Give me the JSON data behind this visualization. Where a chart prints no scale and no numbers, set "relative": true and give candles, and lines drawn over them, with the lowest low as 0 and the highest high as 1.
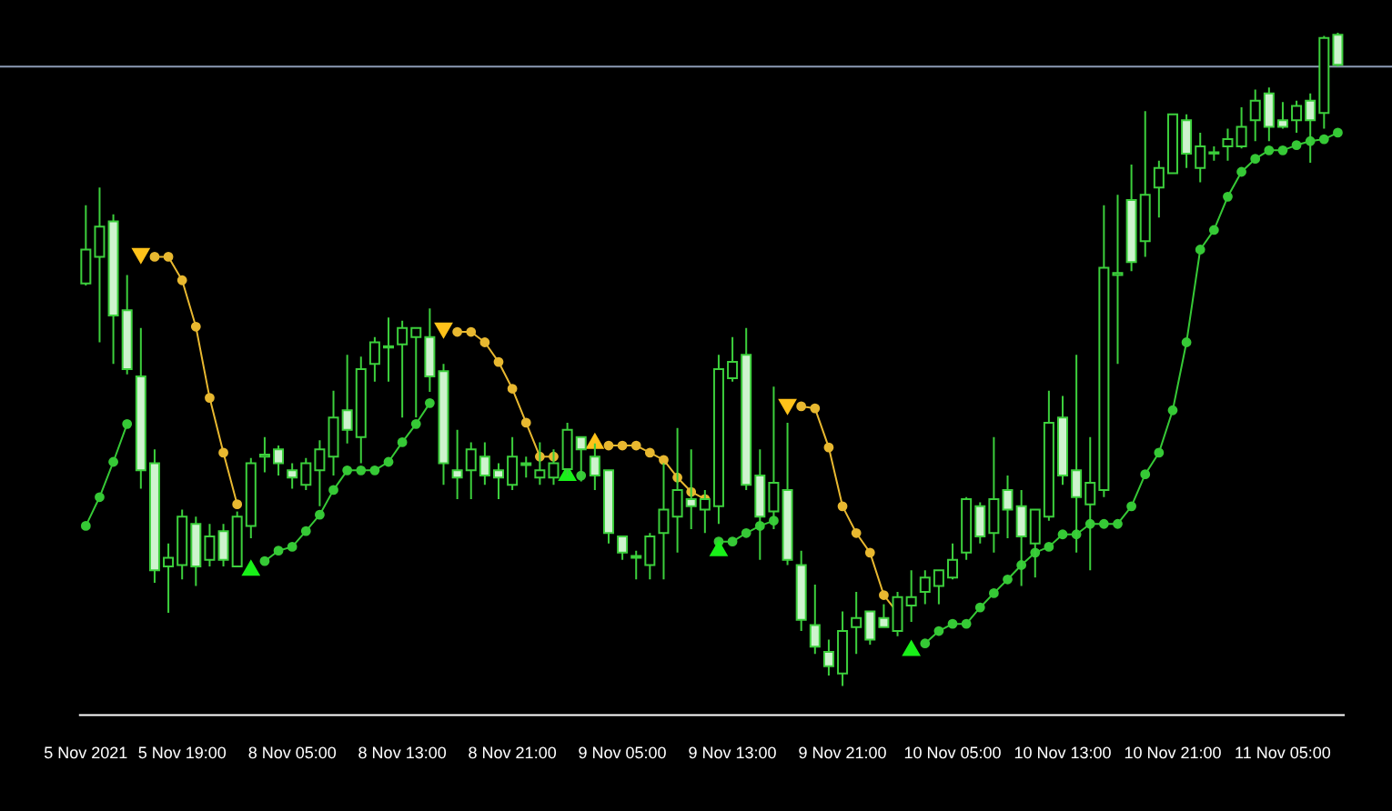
{
  "chart_data": {
    "type": "candlestick",
    "relative": true,
    "color": "#3ccf3c",
    "legend": false,
    "categories": [
      "5 Nov 2021",
      null,
      null,
      null,
      null,
      null,
      null,
      "5 Nov 19:00",
      null,
      null,
      null,
      null,
      null,
      null,
      null,
      "8 Nov 05:00",
      null,
      null,
      null,
      null,
      null,
      null,
      null,
      "8 Nov 13:00",
      null,
      null,
      null,
      null,
      null,
      null,
      null,
      "8 Nov 21:00",
      null,
      null,
      null,
      null,
      null,
      null,
      null,
      "9 Nov 05:00",
      null,
      null,
      null,
      null,
      null,
      null,
      null,
      "9 Nov 13:00",
      null,
      null,
      null,
      null,
      null,
      null,
      null,
      "9 Nov 21:00",
      null,
      null,
      null,
      null,
      null,
      null,
      null,
      "10 Nov 05:00",
      null,
      null,
      null,
      null,
      null,
      null,
      null,
      "10 Nov 13:00",
      null,
      null,
      null,
      null,
      null,
      null,
      null,
      "10 Nov 21:00",
      null,
      null,
      null,
      null,
      null,
      null,
      null,
      "11 Nov 05:00",
      null,
      null,
      null,
      null
    ],
    "ohlc": [
      [
        0.616,
        0.736,
        0.613,
        0.668
      ],
      [
        0.657,
        0.763,
        0.526,
        0.703
      ],
      [
        0.711,
        0.722,
        0.493,
        0.567
      ],
      [
        0.575,
        0.629,
        0.477,
        0.485
      ],
      [
        0.474,
        0.548,
        0.302,
        0.33
      ],
      [
        0.341,
        0.362,
        0.158,
        0.177
      ],
      [
        0.183,
        0.218,
        0.112,
        0.196
      ],
      [
        0.185,
        0.27,
        0.163,
        0.259
      ],
      [
        0.248,
        0.259,
        0.153,
        0.183
      ],
      [
        0.193,
        0.248,
        0.183,
        0.229
      ],
      [
        0.237,
        0.248,
        0.183,
        0.193
      ],
      [
        0.183,
        0.267,
        0.183,
        0.259
      ],
      [
        0.245,
        0.349,
        0.226,
        0.341
      ],
      [
        0.351,
        0.381,
        0.327,
        0.354
      ],
      [
        0.362,
        0.368,
        0.322,
        0.341
      ],
      [
        0.33,
        0.341,
        0.302,
        0.319
      ],
      [
        0.308,
        0.349,
        0.3,
        0.341
      ],
      [
        0.33,
        0.376,
        0.275,
        0.362
      ],
      [
        0.351,
        0.452,
        0.322,
        0.411
      ],
      [
        0.422,
        0.507,
        0.371,
        0.392
      ],
      [
        0.381,
        0.504,
        0.341,
        0.485
      ],
      [
        0.493,
        0.534,
        0.466,
        0.526
      ],
      [
        0.518,
        0.564,
        0.466,
        0.52
      ],
      [
        0.523,
        0.559,
        0.411,
        0.548
      ],
      [
        0.534,
        0.548,
        0.411,
        0.548
      ],
      [
        0.534,
        0.578,
        0.45,
        0.474
      ],
      [
        0.482,
        0.493,
        0.308,
        0.341
      ],
      [
        0.33,
        0.392,
        0.286,
        0.319
      ],
      [
        0.33,
        0.373,
        0.286,
        0.362
      ],
      [
        0.351,
        0.373,
        0.308,
        0.322
      ],
      [
        0.33,
        0.341,
        0.286,
        0.319
      ],
      [
        0.308,
        0.381,
        0.3,
        0.351
      ],
      [
        0.338,
        0.351,
        0.319,
        0.341
      ],
      [
        0.319,
        0.373,
        0.308,
        0.33
      ],
      [
        0.319,
        0.362,
        0.308,
        0.341
      ],
      [
        0.332,
        0.403,
        0.322,
        0.392
      ],
      [
        0.381,
        0.381,
        0.313,
        0.362
      ],
      [
        0.351,
        0.371,
        0.3,
        0.322
      ],
      [
        0.33,
        0.33,
        0.218,
        0.234
      ],
      [
        0.229,
        0.229,
        0.193,
        0.204
      ],
      [
        0.196,
        0.207,
        0.163,
        0.199
      ],
      [
        0.185,
        0.234,
        0.163,
        0.229
      ],
      [
        0.234,
        0.341,
        0.163,
        0.27
      ],
      [
        0.259,
        0.395,
        0.204,
        0.3
      ],
      [
        0.286,
        0.362,
        0.24,
        0.275
      ],
      [
        0.27,
        0.3,
        0.234,
        0.286
      ],
      [
        0.275,
        0.507,
        0.248,
        0.485
      ],
      [
        0.471,
        0.534,
        0.466,
        0.496
      ],
      [
        0.507,
        0.548,
        0.3,
        0.308
      ],
      [
        0.322,
        0.362,
        0.193,
        0.259
      ],
      [
        0.267,
        0.458,
        0.24,
        0.311
      ],
      [
        0.3,
        0.403,
        0.185,
        0.193
      ],
      [
        0.185,
        0.207,
        0.084,
        0.101
      ],
      [
        0.093,
        0.155,
        0.049,
        0.06
      ],
      [
        0.052,
        0.071,
        0.016,
        0.03
      ],
      [
        0.019,
        0.114,
        0,
        0.084
      ],
      [
        0.09,
        0.144,
        0.049,
        0.104
      ],
      [
        0.114,
        0.114,
        0.063,
        0.071
      ],
      [
        0.104,
        0.125,
        0.09,
        0.09
      ],
      [
        0.084,
        0.144,
        0.076,
        0.136
      ],
      [
        0.123,
        0.177,
        0.098,
        0.136
      ],
      [
        0.144,
        0.177,
        0.125,
        0.166
      ],
      [
        0.153,
        0.177,
        0.125,
        0.177
      ],
      [
        0.166,
        0.218,
        0.163,
        0.193
      ],
      [
        0.204,
        0.289,
        0.193,
        0.286
      ],
      [
        0.275,
        0.281,
        0.218,
        0.229
      ],
      [
        0.234,
        0.381,
        0.204,
        0.286
      ],
      [
        0.3,
        0.322,
        0.226,
        0.27
      ],
      [
        0.275,
        0.3,
        0.153,
        0.229
      ],
      [
        0.218,
        0.27,
        0.166,
        0.27
      ],
      [
        0.259,
        0.452,
        0.253,
        0.403
      ],
      [
        0.411,
        0.444,
        0.308,
        0.322
      ],
      [
        0.33,
        0.507,
        0.204,
        0.289
      ],
      [
        0.278,
        0.381,
        0.177,
        0.311
      ],
      [
        0.3,
        0.736,
        0.289,
        0.64
      ],
      [
        0.629,
        0.752,
        0.493,
        0.632
      ],
      [
        0.744,
        0.798,
        0.635,
        0.649
      ],
      [
        0.681,
        0.88,
        0.657,
        0.752
      ],
      [
        0.763,
        0.804,
        0.717,
        0.793
      ],
      [
        0.785,
        0.875,
        0.785,
        0.875
      ],
      [
        0.866,
        0.875,
        0.793,
        0.815
      ],
      [
        0.793,
        0.847,
        0.771,
        0.826
      ],
      [
        0.815,
        0.826,
        0.804,
        0.817
      ],
      [
        0.826,
        0.853,
        0.804,
        0.837
      ],
      [
        0.826,
        0.886,
        0.823,
        0.856
      ],
      [
        0.866,
        0.913,
        0.834,
        0.896
      ],
      [
        0.907,
        0.916,
        0.834,
        0.856
      ],
      [
        0.866,
        0.894,
        0.853,
        0.856
      ],
      [
        0.866,
        0.896,
        0.847,
        0.888
      ],
      [
        0.896,
        0.907,
        0.801,
        0.866
      ],
      [
        0.877,
        0.995,
        0.853,
        0.992
      ],
      [
        0.997,
        1,
        0.948,
        0.951
      ]
    ],
    "series": [
      {
        "type": "line",
        "color": "#36c936",
        "marker": "circle",
        "values": [
          0.245,
          0.289,
          0.343,
          0.401,
          null,
          null,
          null,
          null,
          null,
          null,
          null,
          null,
          null,
          0.191,
          0.207,
          0.213,
          0.237,
          0.262,
          0.3,
          0.33,
          0.33,
          0.33,
          0.343,
          0.373,
          0.401,
          0.433,
          null,
          null,
          null,
          null,
          null,
          null,
          null,
          null,
          null,
          null,
          0.322,
          null,
          null,
          null,
          null,
          null,
          null,
          null,
          null,
          null,
          0.221,
          0.221,
          0.234,
          0.245,
          0.253,
          null,
          null,
          null,
          null,
          null,
          null,
          null,
          null,
          null,
          null,
          0.065,
          0.084,
          0.095,
          0.095,
          0.12,
          0.142,
          0.163,
          0.185,
          0.204,
          0.213,
          0.232,
          0.232,
          0.248,
          0.248,
          0.248,
          0.275,
          0.324,
          0.357,
          0.422,
          0.526,
          0.668,
          0.698,
          0.749,
          0.787,
          0.807,
          0.82,
          0.82,
          0.828,
          0.834,
          0.837,
          0.847
        ]
      },
      {
        "type": "line",
        "color": "#e8b830",
        "marker": "circle",
        "values": [
          null,
          null,
          null,
          null,
          null,
          0.657,
          0.657,
          0.621,
          0.55,
          0.441,
          0.357,
          0.278,
          null,
          null,
          null,
          null,
          null,
          null,
          null,
          null,
          null,
          null,
          null,
          null,
          null,
          null,
          null,
          0.542,
          0.542,
          0.526,
          0.496,
          0.455,
          0.403,
          0.351,
          0.351,
          null,
          null,
          null,
          0.368,
          0.368,
          0.368,
          0.357,
          0.346,
          0.319,
          0.297,
          0.286,
          null,
          null,
          null,
          null,
          null,
          null,
          0.428,
          0.425,
          0.365,
          0.275,
          0.234,
          0.204,
          0.139,
          0.112,
          null,
          null,
          null,
          null,
          null,
          null,
          null,
          null,
          null,
          null,
          null,
          null,
          null,
          null,
          null,
          null,
          null,
          null,
          null,
          null,
          null,
          null,
          null,
          null,
          null,
          null,
          null,
          null,
          null,
          null,
          null,
          null
        ]
      },
      {
        "type": "scatter",
        "color": "#19f019",
        "marker": "triangle",
        "values": [
          null,
          null,
          null,
          null,
          null,
          null,
          null,
          null,
          null,
          null,
          null,
          null,
          0.177,
          null,
          null,
          null,
          null,
          null,
          null,
          null,
          null,
          null,
          null,
          null,
          null,
          null,
          null,
          null,
          null,
          null,
          null,
          null,
          null,
          null,
          null,
          0.322,
          null,
          null,
          null,
          null,
          null,
          null,
          null,
          null,
          null,
          null,
          0.207,
          null,
          null,
          null,
          null,
          null,
          null,
          null,
          null,
          null,
          null,
          null,
          null,
          null,
          0.054,
          null,
          null,
          null,
          null,
          null,
          null,
          null,
          null,
          null,
          null,
          null,
          null,
          null,
          null,
          null,
          null,
          null,
          null,
          null,
          null,
          null,
          null,
          null,
          null,
          null,
          null,
          null,
          null,
          null,
          null,
          null
        ]
      },
      {
        "type": "scatter",
        "color": "#ffc21a",
        "marker": "triangle",
        "values": [
          null,
          null,
          null,
          null,
          0.662,
          null,
          null,
          null,
          null,
          null,
          null,
          null,
          null,
          null,
          null,
          null,
          null,
          null,
          null,
          null,
          null,
          null,
          null,
          null,
          null,
          null,
          0.548,
          null,
          null,
          null,
          null,
          null,
          null,
          null,
          null,
          null,
          null,
          0.371,
          null,
          null,
          null,
          null,
          null,
          null,
          null,
          null,
          null,
          null,
          null,
          null,
          null,
          0.431,
          null,
          null,
          null,
          null,
          null,
          null,
          null,
          null,
          null,
          null,
          null,
          null,
          null,
          null,
          null,
          null,
          null,
          null,
          null,
          null,
          null,
          null,
          null,
          null,
          null,
          null,
          null,
          null,
          null,
          null,
          null,
          null,
          null,
          null,
          null,
          null,
          null,
          null,
          null,
          null
        ]
      }
    ],
    "ref_lines": [
      {
        "axis": "y",
        "value": 0.948,
        "color": "#8c9bb4"
      }
    ]
  }
}
